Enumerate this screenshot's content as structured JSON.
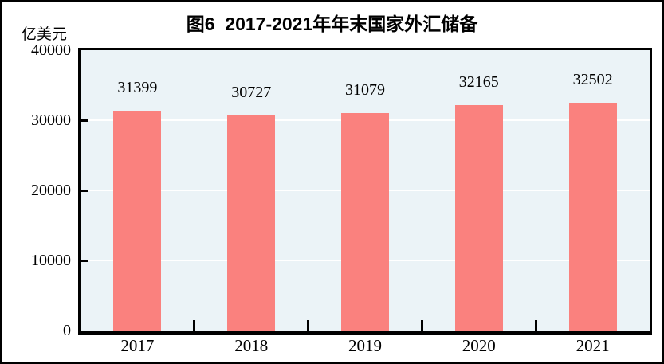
{
  "header": {
    "title": "图6  2017-2021年年末国家外汇储备",
    "unit_label": "亿美元"
  },
  "chart_data": {
    "type": "bar",
    "title": "图6  2017-2021年年末国家外汇储备",
    "ylabel": "亿美元",
    "xlabel": "",
    "categories": [
      "2017",
      "2018",
      "2019",
      "2020",
      "2021"
    ],
    "values": [
      31399,
      30727,
      31079,
      32165,
      32502
    ],
    "data_labels": [
      31399,
      30727,
      31079,
      32165,
      32502
    ],
    "ylim": [
      0,
      40000
    ],
    "yticks": [
      0,
      10000,
      20000,
      30000,
      40000
    ],
    "gridline_values": [
      10000,
      20000,
      30000
    ],
    "grid": true,
    "legend": "none",
    "colors": {
      "bar": "#FA817E",
      "plot_background": "#EBF3F7",
      "gridline": "#FFFFFF",
      "axis": "#000000",
      "text": "#000000"
    }
  }
}
